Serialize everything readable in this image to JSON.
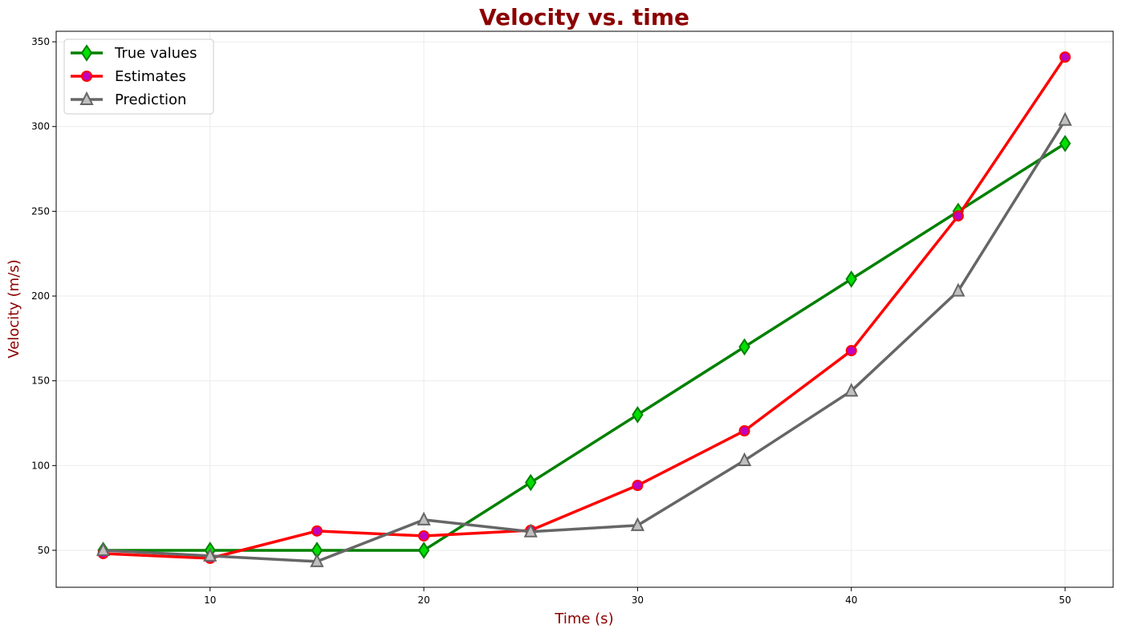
{
  "chart_data": {
    "type": "line",
    "title": "Velocity vs. time",
    "xlabel": "Time (s)",
    "ylabel": "Velocity (m/s)",
    "title_color": "#8b0000",
    "label_color": "#8b0000",
    "xlim": [
      2.8,
      52.25
    ],
    "ylim": [
      28.2,
      356.2
    ],
    "xticks": [
      10,
      20,
      30,
      40,
      50
    ],
    "yticks": [
      50,
      100,
      150,
      200,
      250,
      300,
      350
    ],
    "grid": true,
    "legend_position": "top-left",
    "x": [
      5,
      10,
      15,
      20,
      25,
      30,
      35,
      40,
      45,
      50
    ],
    "series": [
      {
        "name": "True values",
        "color": "#008000",
        "marker": "diamond",
        "marker_fill": "#00e000",
        "values": [
          50,
          50,
          50,
          50,
          90,
          130,
          170,
          210,
          250,
          290
        ]
      },
      {
        "name": "Estimates",
        "color": "#ff0000",
        "marker": "circle",
        "marker_fill": "#c000c0",
        "values": [
          48.1,
          45.3,
          61.4,
          58.5,
          61.8,
          88.3,
          120.5,
          167.8,
          247.3,
          341
        ]
      },
      {
        "name": "Prediction",
        "color": "#666666",
        "marker": "triangle",
        "marker_fill": "#c0c0c0",
        "values": [
          50,
          46.7,
          43.4,
          68,
          61,
          64.7,
          103,
          144,
          203,
          303.8
        ]
      }
    ]
  }
}
